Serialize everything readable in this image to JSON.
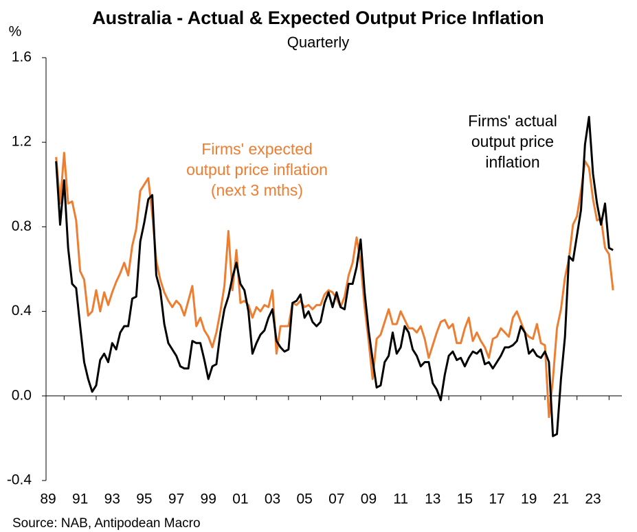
{
  "chart_data": {
    "type": "line",
    "title": "Australia - Actual & Expected Output Price Inflation",
    "subtitle": "Quarterly",
    "y_axis_label": "%",
    "source": "Source: NAB, Antipodean Macro",
    "ylim": [
      -0.4,
      1.6
    ],
    "yticks": [
      -0.4,
      {
        "value": 0,
        "label": "0.0"
      },
      0.4,
      0.8,
      1.2,
      1.6
    ],
    "categories": [
      "89",
      null,
      null,
      null,
      null,
      null,
      null,
      null,
      "91",
      null,
      null,
      null,
      null,
      null,
      null,
      null,
      "93",
      null,
      null,
      null,
      null,
      null,
      null,
      null,
      "95",
      null,
      null,
      null,
      null,
      null,
      null,
      null,
      "97",
      null,
      null,
      null,
      null,
      null,
      null,
      null,
      "99",
      null,
      null,
      null,
      null,
      null,
      null,
      null,
      "01",
      null,
      null,
      null,
      null,
      null,
      null,
      null,
      "03",
      null,
      null,
      null,
      null,
      null,
      null,
      null,
      "05",
      null,
      null,
      null,
      null,
      null,
      null,
      null,
      "07",
      null,
      null,
      null,
      null,
      null,
      null,
      null,
      "09",
      null,
      null,
      null,
      null,
      null,
      null,
      null,
      "11",
      null,
      null,
      null,
      null,
      null,
      null,
      null,
      "13",
      null,
      null,
      null,
      null,
      null,
      null,
      null,
      "15",
      null,
      null,
      null,
      null,
      null,
      null,
      null,
      "17",
      null,
      null,
      null,
      null,
      null,
      null,
      null,
      "19",
      null,
      null,
      null,
      null,
      null,
      null,
      null,
      "21",
      null,
      null,
      null,
      null,
      null,
      null,
      null,
      "23",
      null,
      null,
      null,
      null,
      null
    ],
    "series": [
      {
        "label_lines": [
          "Firms' expected",
          "output price inflation",
          "(next 3 mths)"
        ],
        "color": "#ed7d31",
        "values": [
          null,
          null,
          1.13,
          0.91,
          1.15,
          0.91,
          0.92,
          0.83,
          0.59,
          0.55,
          0.38,
          0.4,
          0.5,
          0.4,
          0.49,
          0.43,
          0.49,
          0.54,
          0.58,
          0.63,
          0.57,
          0.71,
          0.79,
          0.97,
          1.0,
          1.03,
          0.86,
          0.64,
          0.55,
          0.49,
          0.45,
          0.42,
          0.45,
          0.43,
          0.38,
          0.45,
          0.52,
          0.33,
          0.37,
          0.31,
          0.28,
          0.23,
          0.3,
          0.4,
          0.52,
          0.78,
          0.5,
          0.69,
          0.44,
          0.45,
          0.43,
          0.37,
          0.42,
          0.4,
          0.43,
          0.42,
          0.5,
          0.2,
          0.33,
          0.33,
          0.33,
          0.44,
          0.43,
          0.45,
          0.42,
          0.43,
          0.41,
          0.43,
          0.43,
          0.48,
          0.5,
          0.49,
          0.46,
          0.42,
          0.47,
          0.57,
          0.63,
          0.75,
          0.63,
          0.42,
          0.26,
          0.08,
          0.27,
          0.29,
          0.35,
          0.41,
          0.34,
          0.34,
          0.4,
          0.36,
          0.32,
          0.32,
          0.3,
          0.33,
          0.27,
          0.18,
          0.24,
          0.3,
          0.35,
          0.36,
          0.32,
          0.34,
          0.25,
          0.25,
          0.32,
          0.37,
          0.26,
          0.3,
          0.26,
          0.23,
          0.18,
          0.27,
          0.28,
          0.32,
          0.3,
          0.28,
          0.37,
          0.4,
          0.35,
          0.3,
          0.28,
          0.27,
          0.34,
          0.25,
          0.24,
          -0.1,
          0.08,
          0.32,
          0.41,
          0.56,
          0.65,
          0.81,
          0.85,
          0.97,
          1.11,
          1.08,
          0.93,
          0.83,
          0.84,
          0.7,
          0.67,
          0.5
        ]
      },
      {
        "label_lines": [
          "Firms' actual",
          "output price",
          "inflation"
        ],
        "color": "#000000",
        "values": [
          null,
          null,
          1.11,
          0.81,
          1.02,
          0.7,
          0.53,
          0.51,
          0.33,
          0.16,
          0.08,
          0.02,
          0.05,
          0.17,
          0.2,
          0.16,
          0.25,
          0.22,
          0.3,
          0.33,
          0.33,
          0.46,
          0.47,
          0.73,
          0.82,
          0.93,
          0.95,
          0.57,
          0.5,
          0.34,
          0.25,
          0.22,
          0.19,
          0.14,
          0.13,
          0.13,
          0.26,
          0.25,
          0.25,
          0.17,
          0.08,
          0.14,
          0.15,
          0.3,
          0.41,
          0.47,
          0.56,
          0.63,
          0.53,
          0.5,
          0.4,
          0.2,
          0.25,
          0.29,
          0.31,
          0.37,
          0.41,
          0.26,
          0.23,
          0.21,
          0.22,
          0.44,
          0.45,
          0.48,
          0.37,
          0.4,
          0.35,
          0.33,
          0.35,
          0.44,
          0.49,
          0.42,
          0.49,
          0.42,
          0.41,
          0.53,
          0.53,
          0.61,
          0.74,
          0.49,
          0.31,
          0.17,
          0.04,
          0.05,
          0.16,
          0.19,
          0.3,
          0.2,
          0.23,
          0.33,
          0.3,
          0.22,
          0.19,
          0.14,
          0.16,
          0.16,
          0.06,
          0.03,
          -0.02,
          0.1,
          0.19,
          0.21,
          0.17,
          0.18,
          0.14,
          0.18,
          0.21,
          0.2,
          0.22,
          0.15,
          0.16,
          0.13,
          0.16,
          0.19,
          0.23,
          0.23,
          0.24,
          0.26,
          0.33,
          0.3,
          0.2,
          0.22,
          0.19,
          0.18,
          0.21,
          0.16,
          -0.19,
          -0.18,
          0.08,
          0.28,
          0.66,
          0.64,
          0.76,
          0.88,
          1.19,
          1.32,
          1.05,
          0.91,
          0.81,
          0.91,
          0.7,
          0.69
        ]
      }
    ]
  }
}
